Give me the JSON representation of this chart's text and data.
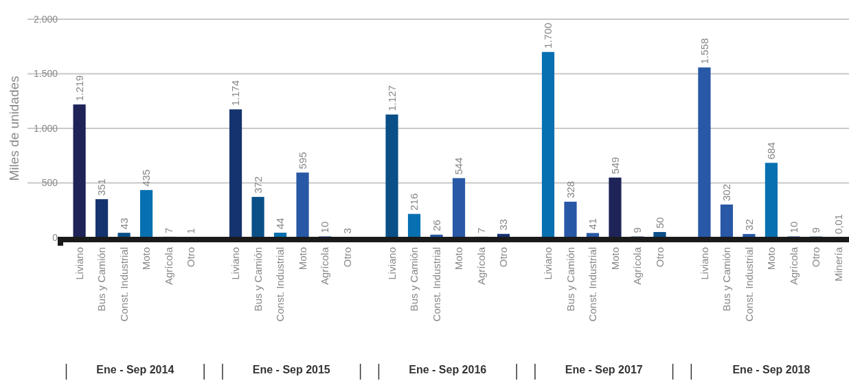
{
  "chart_data": {
    "type": "bar",
    "ylabel": "Miles de unidades",
    "categories": [
      "Liviano",
      "Bus y Camión",
      "Const. Industrial",
      "Moto",
      "Agrícola",
      "Otro",
      null,
      "Liviano",
      "Bus y Camión",
      "Const. Industrial",
      "Moto",
      "Agrícola",
      "Otro",
      null,
      "Liviano",
      "Bus y Camión",
      "Const. Industrial",
      "Moto",
      "Agrícola",
      "Otro",
      null,
      "Liviano",
      "Bus y Camión",
      "Const. Industrial",
      "Moto",
      "Agrícola",
      "Otro",
      null,
      "Liviano",
      "Bus y Camión",
      "Const. Industrial",
      "Moto",
      "Agrícola",
      "Otro",
      "Minería"
    ],
    "values": [
      1219,
      351,
      43,
      435,
      7,
      1,
      null,
      1174,
      372,
      44,
      595,
      10,
      3,
      null,
      1127,
      216,
      26,
      544,
      7,
      33,
      null,
      1700,
      328,
      41,
      549,
      9,
      50,
      null,
      1558,
      302,
      32,
      684,
      10,
      9,
      0.01
    ],
    "value_labels": [
      "1.219",
      "351",
      "43",
      "435",
      "7",
      "1",
      null,
      "1.174",
      "372",
      "44",
      "595",
      "10",
      "3",
      null,
      "1.127",
      "216",
      "26",
      "544",
      "7",
      "33",
      null,
      "1.700",
      "328",
      "41",
      "549",
      "9",
      "50",
      null,
      "1.558",
      "302",
      "32",
      "684",
      "10",
      "9",
      "0,01"
    ],
    "colors": [
      "#1e2458",
      "#15336e",
      "#0a4f87",
      "#0670b0",
      "#2858a6",
      "#2858a6",
      null,
      "#15336e",
      "#0a4f87",
      "#0670b0",
      "#2858a6",
      "#2858a6",
      "#1e2458",
      null,
      "#0a4f87",
      "#0670b0",
      "#2858a6",
      "#2858a6",
      "#1e2458",
      "#15336e",
      null,
      "#0670b0",
      "#2858a6",
      "#2858a6",
      "#1e2458",
      "#15336e",
      "#0a4f87",
      null,
      "#2858a6",
      "#2858a6",
      "#2858a6",
      "#0670b0",
      "#2858a6",
      "#2858a6",
      "#888888"
    ],
    "ylim": [
      0,
      2000
    ],
    "yticks": [
      {
        "value": 0,
        "label": "0"
      },
      {
        "value": 500,
        "label": "500"
      },
      {
        "value": 1000,
        "label": "1.000"
      },
      {
        "value": 1500,
        "label": "1.500"
      },
      {
        "value": 2000,
        "label": "2.000"
      }
    ],
    "grid": "y",
    "annotations": [
      "Ene - Sep 2014",
      "Ene - Sep 2015",
      "Ene - Sep 2016",
      "Ene - Sep 2017",
      "Ene - Sep 2018"
    ]
  }
}
